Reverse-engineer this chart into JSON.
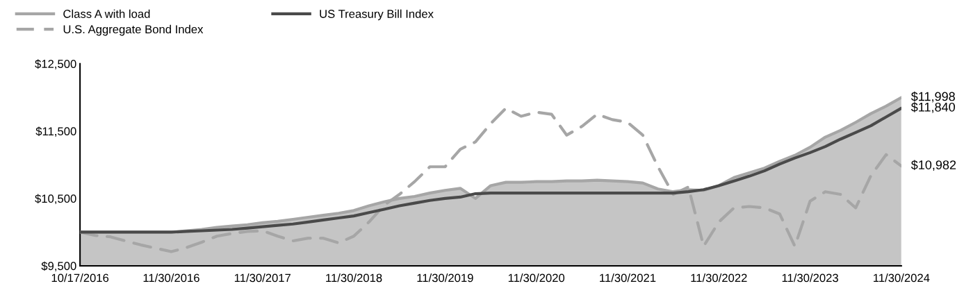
{
  "chart_data": {
    "type": "line",
    "categories": [
      "10/17/2016",
      null,
      null,
      null,
      null,
      null,
      "11/30/2016",
      null,
      null,
      null,
      null,
      null,
      "11/30/2017",
      null,
      null,
      null,
      null,
      null,
      "11/30/2018",
      null,
      null,
      null,
      null,
      null,
      "11/30/2019",
      null,
      null,
      null,
      null,
      null,
      "11/30/2020",
      null,
      null,
      null,
      null,
      null,
      "11/30/2021",
      null,
      null,
      null,
      null,
      null,
      "11/30/2022",
      null,
      null,
      null,
      null,
      null,
      "11/30/2023",
      null,
      null,
      null,
      null,
      null,
      "11/30/2024"
    ],
    "series": [
      {
        "name": "Class A with load",
        "type": "area",
        "color": "#a6a6a6",
        "line_style": "solid",
        "values": [
          10000,
          10000,
          10000,
          10000,
          10000,
          10000,
          10000,
          10020,
          10040,
          10070,
          10090,
          10110,
          10140,
          10160,
          10190,
          10220,
          10250,
          10280,
          10320,
          10390,
          10450,
          10500,
          10530,
          10580,
          10620,
          10650,
          10500,
          10690,
          10740,
          10740,
          10750,
          10750,
          10760,
          10760,
          10770,
          10760,
          10750,
          10730,
          10640,
          10600,
          10630,
          10620,
          10690,
          10810,
          10880,
          10950,
          11050,
          11140,
          11260,
          11410,
          11510,
          11630,
          11760,
          11870,
          11998
        ]
      },
      {
        "name": "U.S. Aggregate Bond Index",
        "color": "#a6a6a6",
        "line_style": "dashed",
        "values": [
          10000,
          9950,
          9930,
          9870,
          9810,
          9760,
          9710,
          9770,
          9850,
          9940,
          9980,
          10010,
          10020,
          9940,
          9870,
          9910,
          9910,
          9840,
          9940,
          10150,
          10400,
          10560,
          10750,
          10970,
          10970,
          11230,
          11340,
          11610,
          11840,
          11720,
          11780,
          11750,
          11440,
          11570,
          11750,
          11670,
          11630,
          11440,
          10970,
          10560,
          10670,
          9790,
          10150,
          10360,
          10380,
          10360,
          10270,
          9790,
          10460,
          10600,
          10560,
          10360,
          10840,
          11150,
          10982
        ]
      },
      {
        "name": "US Treasury Bill Index",
        "color": "#4a4a4a",
        "line_style": "solid",
        "values": [
          10000,
          10000,
          10000,
          10000,
          10000,
          10000,
          10000,
          10010,
          10020,
          10030,
          10040,
          10060,
          10080,
          10100,
          10120,
          10150,
          10180,
          10210,
          10240,
          10290,
          10340,
          10390,
          10430,
          10470,
          10500,
          10520,
          10570,
          10580,
          10580,
          10580,
          10580,
          10580,
          10580,
          10580,
          10580,
          10580,
          10580,
          10580,
          10580,
          10580,
          10600,
          10630,
          10690,
          10760,
          10830,
          10910,
          11010,
          11100,
          11180,
          11270,
          11380,
          11480,
          11580,
          11710,
          11840
        ]
      }
    ],
    "ylim": [
      9500,
      12500
    ],
    "yticks": [
      {
        "value": 9500,
        "label": "$9,500"
      },
      {
        "value": 10500,
        "label": "$10,500"
      },
      {
        "value": 11500,
        "label": "$11,500"
      },
      {
        "value": 12500,
        "label": "$12,500"
      }
    ],
    "annotations": [
      {
        "text": "$11,998",
        "x": "11/30/2024",
        "y": 11998
      },
      {
        "text": "$11,840",
        "x": "11/30/2024",
        "y": 11840
      },
      {
        "text": "$10,982",
        "x": "11/30/2024",
        "y": 10982
      }
    ],
    "grid": false,
    "legend": "top left",
    "marker": "none"
  }
}
